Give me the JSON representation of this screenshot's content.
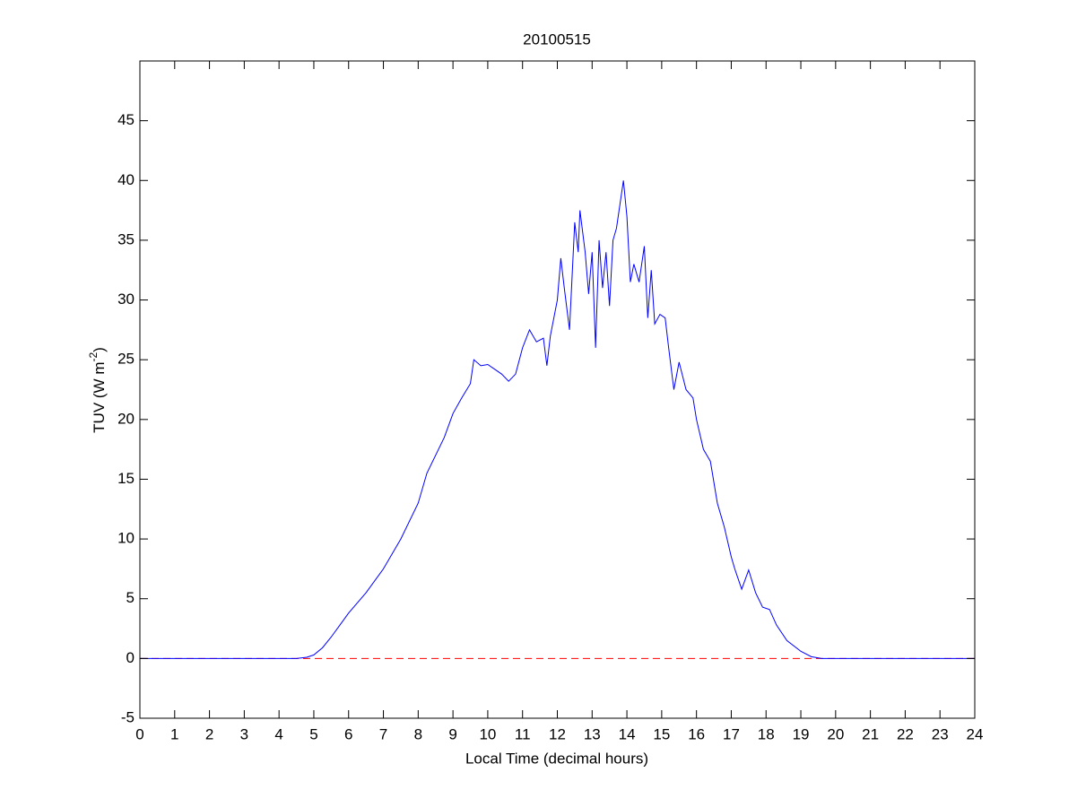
{
  "chart_data": {
    "type": "line",
    "title": "20100515",
    "xlabel": "Local Time (decimal hours)",
    "ylabel": {
      "text": "TUV (W m",
      "superscript": "-2",
      "suffix": ")"
    },
    "x": [
      0,
      4.5,
      4.8,
      5,
      5.25,
      5.5,
      5.75,
      6,
      6.5,
      7,
      7.5,
      8,
      8.25,
      8.5,
      8.75,
      9,
      9.25,
      9.5,
      9.6,
      9.8,
      10,
      10.2,
      10.4,
      10.6,
      10.8,
      11,
      11.2,
      11.4,
      11.6,
      11.7,
      11.8,
      12,
      12.1,
      12.2,
      12.35,
      12.5,
      12.6,
      12.65,
      12.8,
      12.9,
      13,
      13.1,
      13.2,
      13.3,
      13.4,
      13.5,
      13.6,
      13.7,
      13.8,
      13.9,
      14,
      14.1,
      14.2,
      14.35,
      14.5,
      14.6,
      14.7,
      14.8,
      14.95,
      15.1,
      15.2,
      15.35,
      15.5,
      15.7,
      15.9,
      16,
      16.2,
      16.4,
      16.6,
      16.8,
      17,
      17.1,
      17.3,
      17.5,
      17.7,
      17.9,
      18.1,
      18.3,
      18.6,
      19,
      19.3,
      19.6,
      24
    ],
    "series": [
      {
        "color": "#0000ff",
        "values": [
          0,
          0,
          0.1,
          0.3,
          0.9,
          1.8,
          2.8,
          3.8,
          5.5,
          7.5,
          10,
          13,
          15.5,
          17,
          18.5,
          20.5,
          21.8,
          23,
          25,
          24.5,
          24.6,
          24.2,
          23.8,
          23.2,
          23.8,
          26,
          27.5,
          26.5,
          26.8,
          24.5,
          27,
          30,
          33.5,
          31,
          27.5,
          36.5,
          34,
          37.5,
          34,
          30.5,
          34,
          26,
          35,
          31,
          34,
          29.5,
          35,
          36,
          38,
          40,
          37,
          31.5,
          33,
          31.5,
          34.5,
          28.5,
          32.5,
          28,
          28.8,
          28.5,
          26,
          22.5,
          24.8,
          22.5,
          21.8,
          20,
          17.5,
          16.5,
          13,
          11,
          8.5,
          7.5,
          5.8,
          7.4,
          5.5,
          4.3,
          4.1,
          2.8,
          1.5,
          0.6,
          0.15,
          0,
          0
        ]
      }
    ],
    "hline": {
      "value": 0,
      "color": "#ff0000",
      "style": "dashed"
    },
    "xlim": [
      0,
      24
    ],
    "xticks": [
      0,
      1,
      2,
      3,
      4,
      5,
      6,
      7,
      8,
      9,
      10,
      11,
      12,
      13,
      14,
      15,
      16,
      17,
      18,
      19,
      20,
      21,
      22,
      23,
      24
    ],
    "ylim": [
      -5,
      50
    ],
    "yticks": [
      -5,
      0,
      5,
      10,
      15,
      20,
      25,
      30,
      35,
      40,
      45
    ],
    "grid": false
  }
}
